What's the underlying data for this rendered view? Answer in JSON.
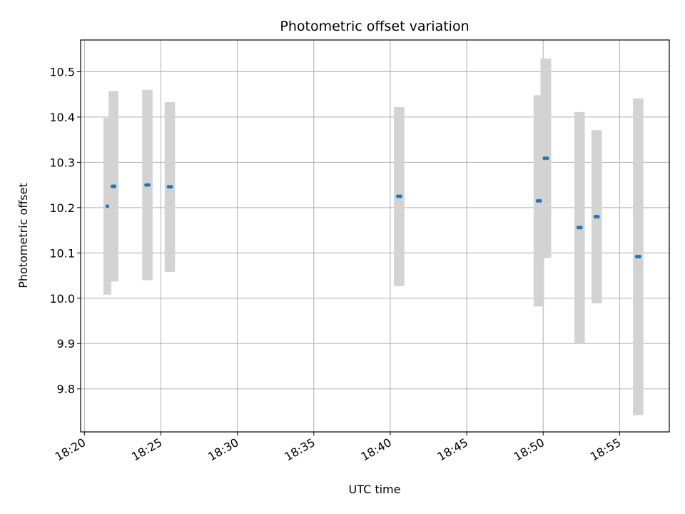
{
  "chart_data": {
    "type": "scatter",
    "title": "Photometric offset variation",
    "xlabel": "UTC time",
    "ylabel": "Photometric offset",
    "xlim": [
      "18:19:45",
      "18:58:15"
    ],
    "ylim": [
      9.705,
      10.57
    ],
    "x_ticks": [
      "18:20",
      "18:25",
      "18:30",
      "18:35",
      "18:40",
      "18:45",
      "18:50",
      "18:55"
    ],
    "y_ticks": [
      9.8,
      9.9,
      10.0,
      10.1,
      10.2,
      10.3,
      10.4,
      10.5
    ],
    "y_tick_labels": [
      "9.8",
      "9.9",
      "10.0",
      "10.1",
      "10.2",
      "10.3",
      "10.4",
      "10.5"
    ],
    "grid": true,
    "colors": {
      "marker": "#1f77b4",
      "error_band": "#d3d3d3",
      "grid": "#b0b0b0"
    },
    "series": [
      {
        "points": [
          {
            "time": "18:21:30",
            "y": 10.203,
            "ylo": 10.008,
            "yhi": 10.398
          },
          {
            "time": "18:21:50",
            "y": 10.247,
            "ylo": 10.037,
            "yhi": 10.457
          },
          {
            "time": "18:21:58",
            "y": 10.247,
            "ylo": 10.037,
            "yhi": 10.457
          },
          {
            "time": "18:24:02",
            "y": 10.25,
            "ylo": 10.04,
            "yhi": 10.46
          },
          {
            "time": "18:24:12",
            "y": 10.25,
            "ylo": 10.04,
            "yhi": 10.46
          },
          {
            "time": "18:25:30",
            "y": 10.246,
            "ylo": 10.058,
            "yhi": 10.433
          },
          {
            "time": "18:25:40",
            "y": 10.246,
            "ylo": 10.058,
            "yhi": 10.433
          },
          {
            "time": "18:40:30",
            "y": 10.225,
            "ylo": 10.027,
            "yhi": 10.422
          },
          {
            "time": "18:40:40",
            "y": 10.225,
            "ylo": 10.027,
            "yhi": 10.422
          },
          {
            "time": "18:49:38",
            "y": 10.215,
            "ylo": 9.982,
            "yhi": 10.448
          },
          {
            "time": "18:49:48",
            "y": 10.215,
            "ylo": 9.982,
            "yhi": 10.448
          },
          {
            "time": "18:50:05",
            "y": 10.309,
            "ylo": 10.089,
            "yhi": 10.529
          },
          {
            "time": "18:50:16",
            "y": 10.309,
            "ylo": 10.089,
            "yhi": 10.529
          },
          {
            "time": "18:52:18",
            "y": 10.156,
            "ylo": 9.9,
            "yhi": 10.411
          },
          {
            "time": "18:52:28",
            "y": 10.156,
            "ylo": 9.9,
            "yhi": 10.411
          },
          {
            "time": "18:53:25",
            "y": 10.18,
            "ylo": 9.989,
            "yhi": 10.371
          },
          {
            "time": "18:53:35",
            "y": 10.18,
            "ylo": 9.989,
            "yhi": 10.371
          },
          {
            "time": "18:56:08",
            "y": 10.092,
            "ylo": 9.742,
            "yhi": 10.441
          },
          {
            "time": "18:56:18",
            "y": 10.092,
            "ylo": 9.742,
            "yhi": 10.441
          }
        ]
      }
    ]
  }
}
